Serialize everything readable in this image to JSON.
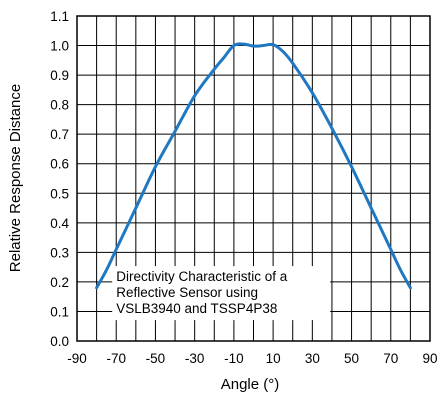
{
  "chart_data": {
    "type": "line",
    "title": "",
    "xlabel": "Angle (°)",
    "ylabel": "Relative Response Distance",
    "xlim": [
      -90,
      90
    ],
    "ylim": [
      0.0,
      1.1
    ],
    "x_ticks": [
      "-90",
      "-70",
      "-50",
      "-30",
      "-10",
      "10",
      "30",
      "50",
      "70",
      "90"
    ],
    "y_ticks": [
      "0.0",
      "0.1",
      "0.2",
      "0.3",
      "0.4",
      "0.5",
      "0.6",
      "0.7",
      "0.8",
      "0.9",
      "1.0",
      "1.1"
    ],
    "grid": true,
    "grid_step_x": 10,
    "grid_step_y": 0.1,
    "annotation": {
      "lines": [
        "Directivity Characteristic of a",
        "Reflective Sensor using",
        "VSLB3940 and TSSP4P38"
      ],
      "anchor": {
        "x": -70,
        "y": 0.24
      }
    },
    "series": [
      {
        "color": "#1f78c1",
        "x": [
          -80,
          -75,
          -70,
          -60,
          -50,
          -40,
          -30,
          -20,
          -15,
          -10,
          -5,
          0,
          5,
          10,
          15,
          20,
          30,
          40,
          50,
          60,
          70,
          75,
          80
        ],
        "values": [
          0.18,
          0.24,
          0.31,
          0.45,
          0.59,
          0.71,
          0.83,
          0.92,
          0.96,
          1.0,
          1.005,
          0.998,
          1.0,
          1.003,
          0.98,
          0.94,
          0.84,
          0.72,
          0.59,
          0.45,
          0.31,
          0.24,
          0.18
        ]
      }
    ]
  }
}
